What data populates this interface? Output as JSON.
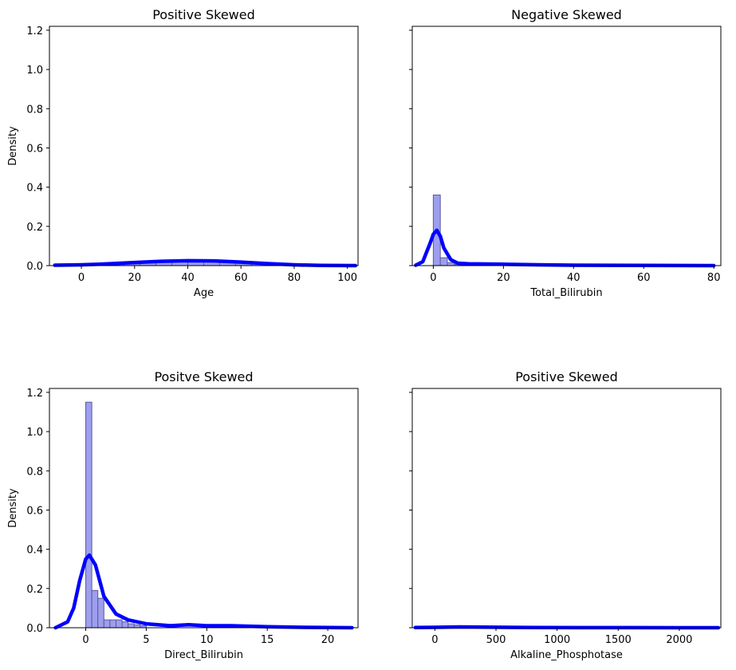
{
  "chart_data": [
    {
      "type": "histogram",
      "title": "Positive Skewed",
      "xlabel": "Age",
      "ylabel": "Density",
      "xlim": [
        -12,
        104
      ],
      "ylim": [
        0,
        1.22
      ],
      "xticks": [
        0,
        20,
        40,
        60,
        80,
        100
      ],
      "yticks": [
        0.0,
        0.2,
        0.4,
        0.6,
        0.8,
        1.0,
        1.2
      ],
      "ytick_labels_visible": true,
      "bar_color": "#9999ee",
      "bar_edge_color": "#5a5a9a",
      "line_color": "#0000ff",
      "bins": [
        {
          "x0": 4,
          "x1": 10,
          "density": 0.004
        },
        {
          "x0": 10,
          "x1": 16,
          "density": 0.008
        },
        {
          "x0": 16,
          "x1": 22,
          "density": 0.012
        },
        {
          "x0": 22,
          "x1": 28,
          "density": 0.018
        },
        {
          "x0": 28,
          "x1": 34,
          "density": 0.022
        },
        {
          "x0": 34,
          "x1": 40,
          "density": 0.024
        },
        {
          "x0": 40,
          "x1": 46,
          "density": 0.025
        },
        {
          "x0": 46,
          "x1": 52,
          "density": 0.024
        },
        {
          "x0": 52,
          "x1": 58,
          "density": 0.022
        },
        {
          "x0": 58,
          "x1": 64,
          "density": 0.018
        },
        {
          "x0": 64,
          "x1": 70,
          "density": 0.012
        },
        {
          "x0": 70,
          "x1": 76,
          "density": 0.008
        },
        {
          "x0": 76,
          "x1": 82,
          "density": 0.004
        },
        {
          "x0": 82,
          "x1": 90,
          "density": 0.002
        }
      ],
      "kde": {
        "x": [
          -10,
          0,
          10,
          20,
          30,
          40,
          50,
          60,
          70,
          80,
          90,
          103
        ],
        "y": [
          0.002,
          0.004,
          0.009,
          0.016,
          0.022,
          0.025,
          0.024,
          0.018,
          0.01,
          0.004,
          0.001,
          0.0
        ]
      }
    },
    {
      "type": "histogram",
      "title": "Negative Skewed",
      "xlabel": "Total_Bilirubin",
      "ylabel": "",
      "xlim": [
        -6,
        82
      ],
      "ylim": [
        0,
        1.22
      ],
      "xticks": [
        0,
        20,
        40,
        60,
        80
      ],
      "yticks": [
        0.0,
        0.2,
        0.4,
        0.6,
        0.8,
        1.0,
        1.2
      ],
      "ytick_labels_visible": false,
      "bar_color": "#9999ee",
      "bar_edge_color": "#5a5a9a",
      "line_color": "#0000ff",
      "bins": [
        {
          "x0": 0,
          "x1": 2,
          "density": 0.36
        },
        {
          "x0": 2,
          "x1": 4,
          "density": 0.04
        },
        {
          "x0": 4,
          "x1": 6,
          "density": 0.015
        },
        {
          "x0": 6,
          "x1": 8,
          "density": 0.006
        },
        {
          "x0": 8,
          "x1": 10,
          "density": 0.004
        },
        {
          "x0": 10,
          "x1": 12,
          "density": 0.003
        },
        {
          "x0": 12,
          "x1": 14,
          "density": 0.002
        }
      ],
      "kde": {
        "x": [
          -5,
          -3,
          -1,
          0,
          1,
          2,
          3,
          5,
          7,
          10,
          15,
          20,
          30,
          40,
          60,
          80
        ],
        "y": [
          0.002,
          0.02,
          0.11,
          0.16,
          0.18,
          0.15,
          0.09,
          0.03,
          0.012,
          0.009,
          0.008,
          0.007,
          0.004,
          0.002,
          0.001,
          0.0
        ]
      }
    },
    {
      "type": "histogram",
      "title": "Positve Skewed",
      "xlabel": "Direct_Bilirubin",
      "ylabel": "Density",
      "xlim": [
        -3,
        22.5
      ],
      "ylim": [
        0,
        1.22
      ],
      "xticks": [
        0,
        5,
        10,
        15,
        20
      ],
      "yticks": [
        0.0,
        0.2,
        0.4,
        0.6,
        0.8,
        1.0,
        1.2
      ],
      "ytick_labels_visible": true,
      "bar_color": "#9999ee",
      "bar_edge_color": "#5a5a9a",
      "line_color": "#0000ff",
      "bins": [
        {
          "x0": 0.0,
          "x1": 0.5,
          "density": 1.15
        },
        {
          "x0": 0.5,
          "x1": 1.0,
          "density": 0.19
        },
        {
          "x0": 1.0,
          "x1": 1.5,
          "density": 0.15
        },
        {
          "x0": 1.5,
          "x1": 2.0,
          "density": 0.04
        },
        {
          "x0": 2.0,
          "x1": 2.5,
          "density": 0.04
        },
        {
          "x0": 2.5,
          "x1": 3.0,
          "density": 0.04
        },
        {
          "x0": 3.0,
          "x1": 3.5,
          "density": 0.03
        },
        {
          "x0": 3.5,
          "x1": 4.0,
          "density": 0.02
        },
        {
          "x0": 4.0,
          "x1": 4.5,
          "density": 0.015
        },
        {
          "x0": 4.5,
          "x1": 5.0,
          "density": 0.01
        }
      ],
      "kde": {
        "x": [
          -2.5,
          -1.5,
          -1,
          -0.5,
          0,
          0.3,
          0.8,
          1.5,
          2.5,
          3.5,
          5,
          7,
          8.5,
          10,
          12,
          15,
          18,
          22
        ],
        "y": [
          0.0,
          0.03,
          0.1,
          0.24,
          0.35,
          0.37,
          0.32,
          0.16,
          0.07,
          0.04,
          0.02,
          0.01,
          0.015,
          0.01,
          0.01,
          0.005,
          0.002,
          0.0
        ]
      }
    },
    {
      "type": "histogram",
      "title": "Positive Skewed",
      "xlabel": "Alkaline_Phosphotase",
      "ylabel": "",
      "xlim": [
        -185,
        2340
      ],
      "ylim": [
        0,
        1.22
      ],
      "xticks": [
        0,
        500,
        1000,
        1500,
        2000
      ],
      "yticks": [
        0.0,
        0.2,
        0.4,
        0.6,
        0.8,
        1.0,
        1.2
      ],
      "ytick_labels_visible": false,
      "bar_color": "#9999ee",
      "bar_edge_color": "#5a5a9a",
      "line_color": "#0000ff",
      "bins": [],
      "kde": {
        "x": [
          -160,
          0,
          200,
          400,
          800,
          1200,
          1600,
          2000,
          2320
        ],
        "y": [
          0.001,
          0.002,
          0.004,
          0.003,
          0.001,
          0.0005,
          0.0003,
          0.0002,
          0.0
        ]
      }
    }
  ]
}
